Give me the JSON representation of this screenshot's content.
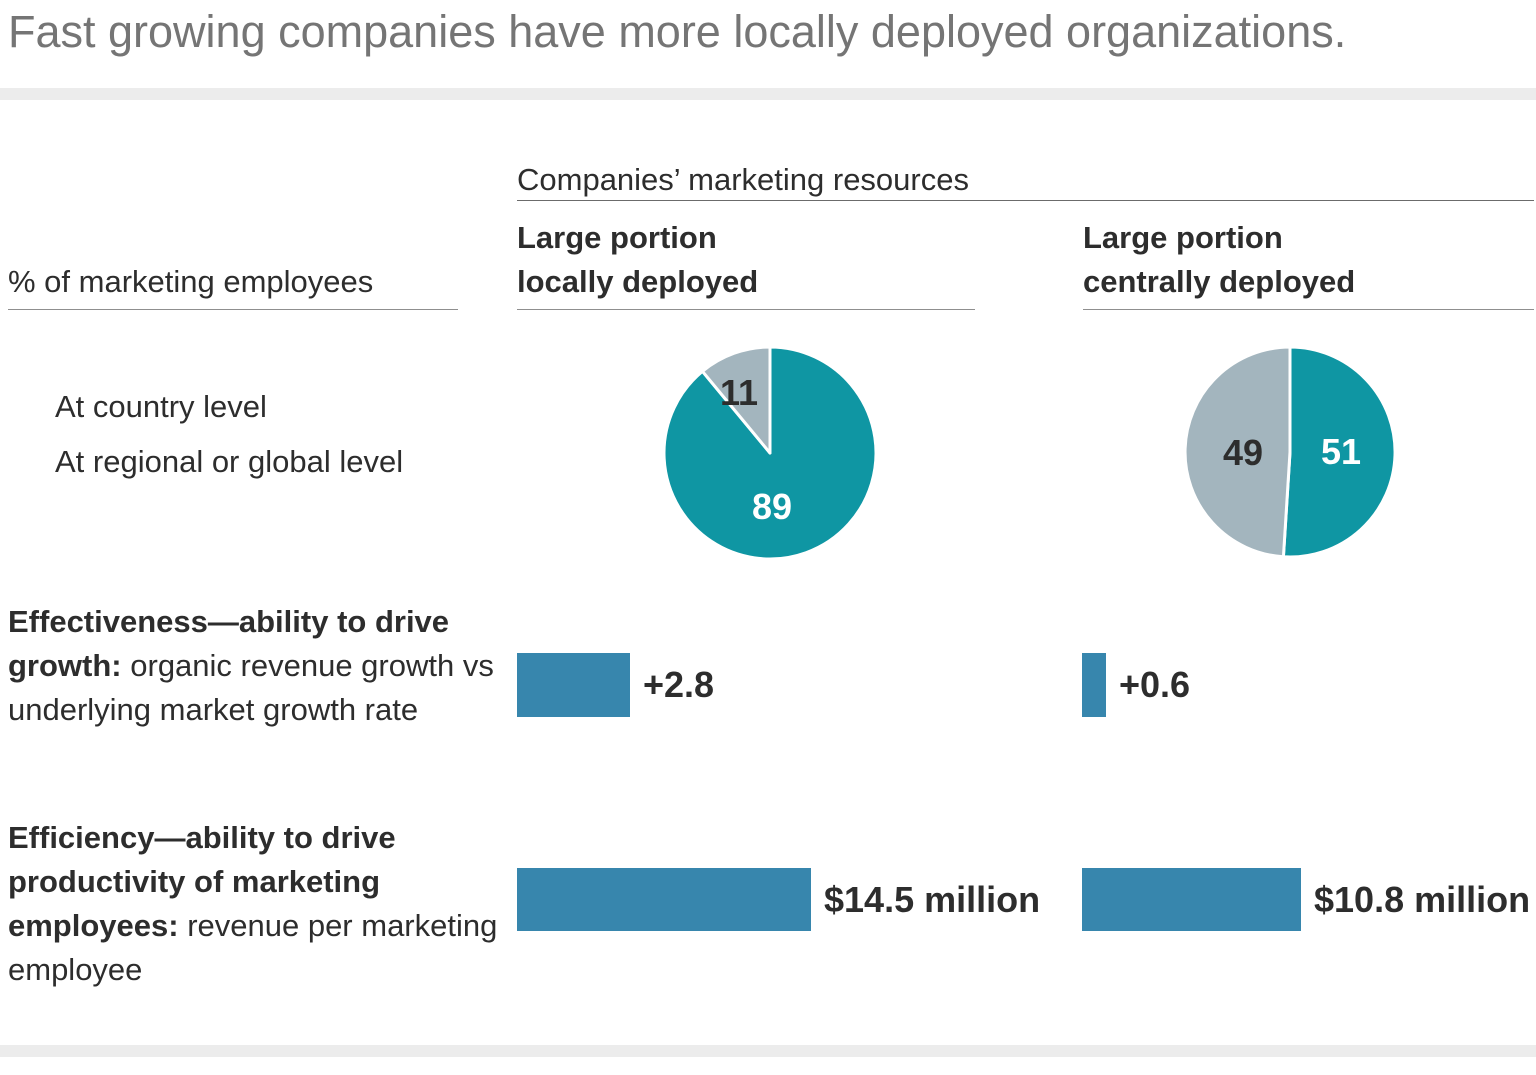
{
  "title": "Fast growing companies have more locally deployed organizations.",
  "colors": {
    "teal": "#0f96a3",
    "gray_blue": "#a3b5be",
    "bar_blue": "#3786ad",
    "band_gray": "#ececec",
    "title_gray": "#757575",
    "text_dark": "#2d2d2d"
  },
  "header": {
    "group_label": "Companies’ marketing resources",
    "col1": {
      "line1": "Large portion",
      "line2": "locally deployed"
    },
    "col2": {
      "line1": "Large portion",
      "line2": "centrally deployed"
    }
  },
  "left_panel": {
    "axis_label": "% of marketing employees",
    "legend": [
      {
        "label": "At country level",
        "color": "#0f96a3"
      },
      {
        "label": "At regional or global level",
        "color": "#a3b5be"
      }
    ]
  },
  "row_labels": {
    "effectiveness_bold": "Effectiveness—ability to drive growth:",
    "effectiveness_rest": " organic revenue growth vs underlying market growth rate",
    "efficiency_bold": "Efficiency—ability to drive productivity of marketing employees:",
    "efficiency_rest": " revenue per marketing employee"
  },
  "chart_data": [
    {
      "type": "pie",
      "title": "Large portion locally deployed",
      "units": "% of marketing employees",
      "legend_position": "left",
      "slices": [
        {
          "label": "At country level",
          "value": 89,
          "color": "#0f96a3"
        },
        {
          "label": "At regional or global level",
          "value": 11,
          "color": "#a3b5be"
        }
      ]
    },
    {
      "type": "pie",
      "title": "Large portion centrally deployed",
      "units": "% of marketing employees",
      "legend_position": "left",
      "slices": [
        {
          "label": "At country level",
          "value": 51,
          "color": "#0f96a3"
        },
        {
          "label": "At regional or global level",
          "value": 49,
          "color": "#a3b5be"
        }
      ]
    },
    {
      "type": "bar",
      "title": "Effectiveness—ability to drive growth: organic revenue growth vs underlying market growth rate",
      "categories": [
        "Large portion locally deployed",
        "Large portion centrally deployed"
      ],
      "values": [
        2.8,
        0.6
      ],
      "value_labels": [
        "+2.8",
        "+0.6"
      ],
      "color": "#3786ad"
    },
    {
      "type": "bar",
      "title": "Efficiency—ability to drive productivity of marketing employees: revenue per marketing employee",
      "categories": [
        "Large portion locally deployed",
        "Large portion centrally deployed"
      ],
      "values": [
        14.5,
        10.8
      ],
      "value_labels": [
        "$14.5 million",
        "$10.8 million"
      ],
      "color": "#3786ad"
    }
  ]
}
